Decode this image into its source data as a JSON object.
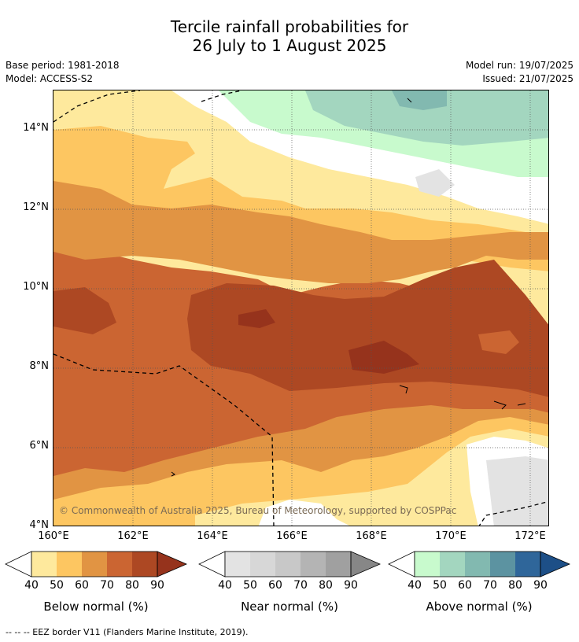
{
  "title": {
    "line1": "Tercile rainfall probabilities for",
    "line2": "26 July to 1 August 2025"
  },
  "meta": {
    "base_period": "Base period: 1981-2018",
    "model": "Model: ACCESS-S2",
    "model_run": "Model run: 19/07/2025",
    "issued": "Issued: 21/07/2025"
  },
  "map": {
    "lat_labels": [
      "14°N",
      "12°N",
      "10°N",
      "8°N",
      "6°N",
      "4°N"
    ],
    "lon_labels": [
      "160°E",
      "162°E",
      "164°E",
      "166°E",
      "168°E",
      "170°E",
      "172°E"
    ],
    "copyright": "© Commonwealth of Australia 2025, Bureau of Meteorology, supported by COSPPac"
  },
  "colorbars": [
    {
      "label": "Below normal (%)",
      "ticks": [
        "40",
        "50",
        "60",
        "70",
        "80",
        "90"
      ],
      "colors": [
        "#fee99d",
        "#fdc661",
        "#e19443",
        "#cb6532",
        "#ad4823",
        "#96331c"
      ]
    },
    {
      "label": "Near normal (%)",
      "ticks": [
        "40",
        "50",
        "60",
        "70",
        "80",
        "90"
      ],
      "colors": [
        "#e3e3e3",
        "#d7d7d7",
        "#c8c8c8",
        "#b4b4b4",
        "#a0a0a0",
        "#878787"
      ]
    },
    {
      "label": "Above normal (%)",
      "ticks": [
        "40",
        "50",
        "60",
        "70",
        "80",
        "90"
      ],
      "colors": [
        "#c8facd",
        "#a3d6bf",
        "#82b9b0",
        "#5c93a1",
        "#2f669a",
        "#1d4f87"
      ]
    }
  ],
  "footnote": "--  --  -- EEZ border V11 (Flanders Marine Institute, 2019)."
}
